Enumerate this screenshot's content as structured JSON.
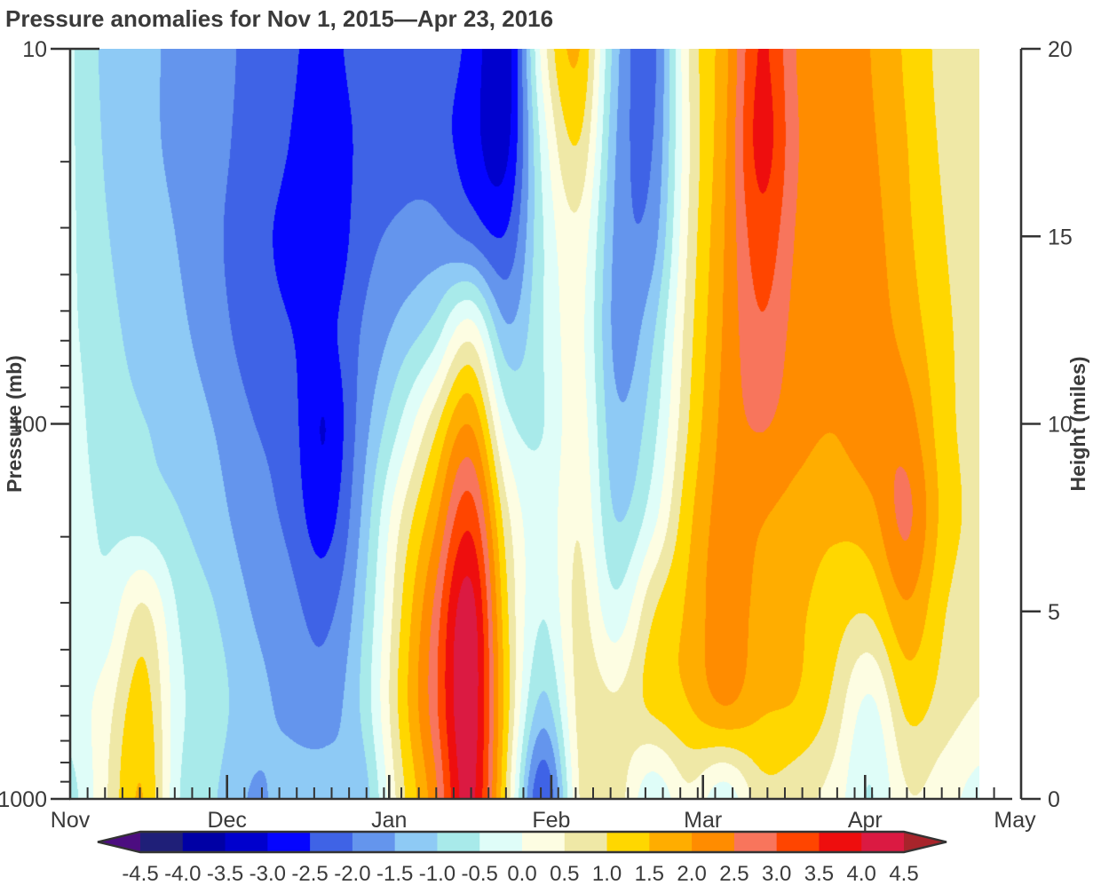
{
  "title": "Pressure anomalies for Nov 1, 2015—Apr 23, 2016",
  "axes": {
    "x": {
      "month_labels": [
        "Nov",
        "Dec",
        "Jan",
        "Feb",
        "Mar",
        "Apr",
        "May"
      ],
      "month_start_days": [
        0,
        30,
        61,
        92,
        121,
        152,
        182
      ]
    },
    "y_left": {
      "label": "Pressure (mb)",
      "scale": "log",
      "major_tick_labels": [
        "10",
        "100",
        "1000"
      ],
      "major_tick_pressures_mb": [
        10,
        100,
        1000
      ],
      "minor_tick_pressures_mb": [
        20,
        30,
        40,
        50,
        60,
        70,
        80,
        90,
        200,
        300,
        400,
        500,
        600,
        700,
        800,
        900
      ]
    },
    "y_right": {
      "label": "Height (miles)",
      "tick_labels": [
        "20",
        "15",
        "10",
        "5",
        "0"
      ],
      "tick_miles": [
        20,
        15,
        10,
        5,
        0
      ],
      "range_miles": [
        0,
        20
      ]
    }
  },
  "colorbar": {
    "tick_labels": [
      "-4.5",
      "-4.0",
      "-3.5",
      "-3.0",
      "-2.5",
      "-2.0",
      "-1.5",
      "-1.0",
      "-0.5",
      "0.0",
      "0.5",
      "1.0",
      "1.5",
      "2.0",
      "2.5",
      "3.0",
      "3.5",
      "4.0",
      "4.5"
    ],
    "band_colors": [
      "#1F1F78",
      "#0000A5",
      "#0000CD",
      "#0505FF",
      "#3F63E6",
      "#6495ED",
      "#8ECAF5",
      "#A8EAEA",
      "#DFFDF8",
      "#FDFDE2",
      "#EFE8A6",
      "#FFD700",
      "#FFAD00",
      "#FF8C00",
      "#F8755C",
      "#FF4500",
      "#EE0E0E",
      "#DB1A42"
    ],
    "under_color": "#4C0D80",
    "over_color": "#A8242B",
    "outline_color": "#333333"
  },
  "chart_data": {
    "type": "filled_contour",
    "title": "Pressure anomalies for Nov 1, 2015—Apr 23, 2016",
    "xlabel": "",
    "ylabel_left": "Pressure (mb)",
    "ylabel_right": "Height (miles)",
    "x_axis_months": [
      "Nov",
      "Dec",
      "Jan",
      "Feb",
      "Mar",
      "Apr",
      "May"
    ],
    "x_range_days_since_nov1": [
      0,
      182
    ],
    "data_end_day": 174,
    "y_pressure_range_mb": [
      10,
      1000
    ],
    "y_scale": "log",
    "right_axis_height_miles_range": [
      0,
      20
    ],
    "contour_levels": [
      -4.5,
      -4.0,
      -3.5,
      -3.0,
      -2.5,
      -2.0,
      -1.5,
      -1.0,
      -0.5,
      0.0,
      0.5,
      1.0,
      1.5,
      2.0,
      2.5,
      3.0,
      3.5,
      4.0,
      4.5
    ],
    "grid": {
      "days_since_nov1": [
        0,
        7,
        14,
        21,
        28,
        35,
        42,
        49,
        56,
        63,
        70,
        77,
        84,
        91,
        98,
        105,
        112,
        119,
        126,
        133,
        140,
        147,
        154,
        161,
        168,
        174
      ],
      "pressure_levels_mb": [
        10,
        18,
        32,
        56,
        100,
        178,
        316,
        562,
        1000
      ],
      "anomaly_values": [
        [
          -0.4,
          -1.2,
          -1.4,
          -1.6,
          -1.7,
          -2.2,
          -2.4,
          -2.7,
          -2.3,
          -2.1,
          -2.2,
          -2.6,
          -3.6,
          0.4,
          1.8,
          -1.4,
          -2.4,
          0.6,
          1.8,
          3.7,
          2.4,
          2.2,
          2.0,
          1.4,
          0.8,
          0.5
        ],
        [
          -0.4,
          -1.1,
          -1.4,
          -1.6,
          -1.8,
          -2.3,
          -2.5,
          -2.9,
          -2.4,
          -2.2,
          -2.3,
          -2.8,
          -3.4,
          -0.2,
          1.2,
          -1.6,
          -2.2,
          0.5,
          1.9,
          3.9,
          2.5,
          2.2,
          2.1,
          1.5,
          0.9,
          0.6
        ],
        [
          -0.4,
          -1.0,
          -1.3,
          -1.5,
          -1.9,
          -2.4,
          -2.6,
          -3.1,
          -2.2,
          -1.9,
          -1.8,
          -2.2,
          -2.6,
          -0.5,
          0.5,
          -1.7,
          -1.9,
          0.6,
          2.0,
          3.4,
          2.4,
          2.1,
          2.2,
          1.6,
          1.0,
          0.6
        ],
        [
          -0.4,
          -0.9,
          -1.2,
          -1.4,
          -1.8,
          -2.3,
          -2.5,
          -2.7,
          -2.0,
          -1.4,
          -0.9,
          0.5,
          -1.6,
          -0.5,
          0.3,
          -1.8,
          -1.2,
          0.8,
          2.1,
          3.0,
          2.3,
          2.1,
          2.3,
          1.8,
          1.1,
          0.7
        ],
        [
          -0.3,
          -0.8,
          -1.0,
          -1.2,
          -1.5,
          -2.0,
          -2.2,
          -3.2,
          -1.8,
          -0.6,
          0.8,
          2.2,
          -0.4,
          -0.6,
          0.4,
          -1.5,
          -0.8,
          1.0,
          2.2,
          2.6,
          2.2,
          2.0,
          2.4,
          2.3,
          1.2,
          0.7
        ],
        [
          -0.3,
          -0.6,
          -0.8,
          -1.0,
          -1.3,
          -1.8,
          -2.1,
          -2.9,
          -1.5,
          0.4,
          1.8,
          3.6,
          0.6,
          -0.4,
          0.6,
          -1.2,
          -0.3,
          1.4,
          2.3,
          2.0,
          1.8,
          1.6,
          1.8,
          2.8,
          1.3,
          0.8
        ],
        [
          -0.3,
          -0.4,
          0.8,
          -0.6,
          -1.0,
          -1.5,
          -1.8,
          -2.2,
          -1.2,
          0.8,
          2.6,
          4.6,
          1.0,
          -0.6,
          0.8,
          -0.5,
          1.0,
          1.6,
          2.4,
          1.8,
          1.6,
          1.2,
          1.0,
          2.0,
          1.0,
          0.6
        ],
        [
          -0.3,
          0.3,
          1.4,
          -0.4,
          -0.8,
          -1.3,
          -1.6,
          -1.8,
          -1.0,
          1.0,
          2.8,
          4.7,
          1.2,
          -1.4,
          0.8,
          0.6,
          1.2,
          1.5,
          2.2,
          1.6,
          1.5,
          0.9,
          -0.3,
          1.2,
          0.8,
          0.5
        ],
        [
          -0.8,
          0.5,
          1.7,
          -0.6,
          -1.0,
          -1.6,
          -1.3,
          -1.2,
          -1.5,
          0.6,
          2.2,
          4.5,
          0.9,
          -3.0,
          0.7,
          0.9,
          -0.6,
          0.4,
          -0.6,
          0.8,
          0.6,
          0.3,
          -0.7,
          0.5,
          0.2,
          -0.3
        ]
      ]
    },
    "legend_position": "bottom colorbar",
    "grid_lines": false
  }
}
